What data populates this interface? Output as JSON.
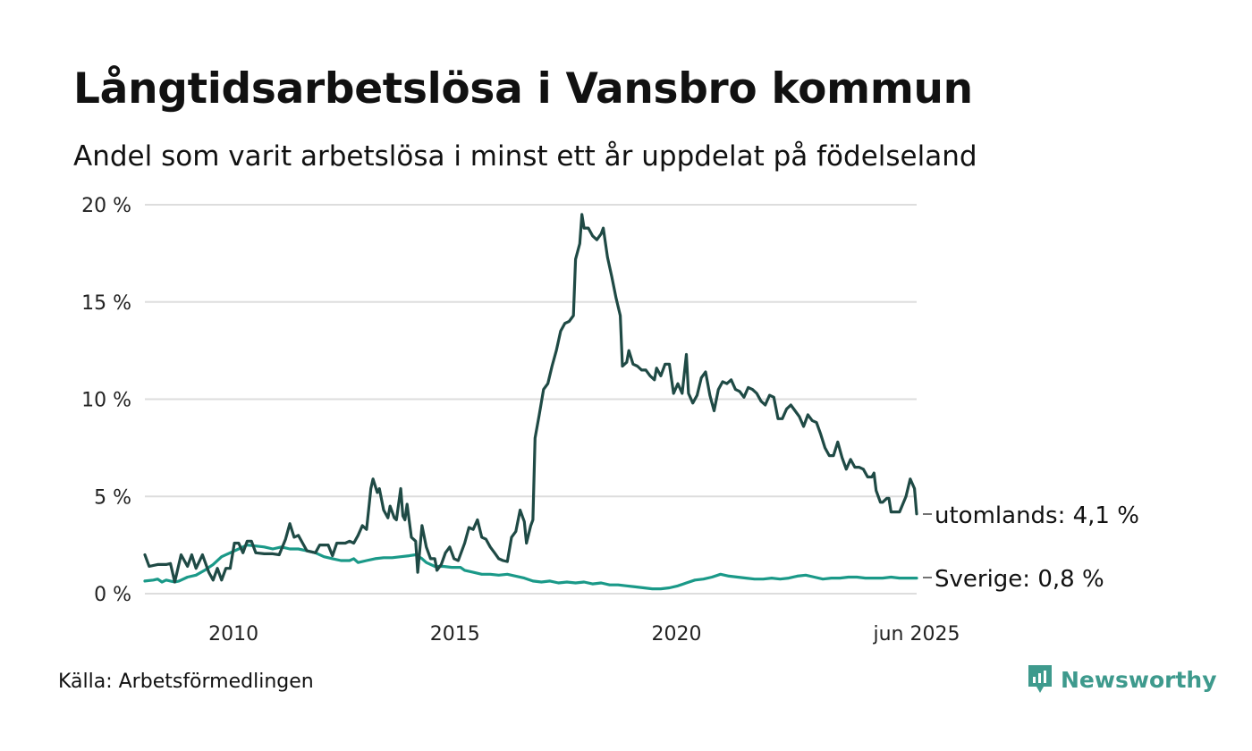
{
  "title": "Långtidsarbetslösa i Vansbro kommun",
  "subtitle": "Andel som varit arbetslösa i minst ett år uppdelat på födelseland",
  "source": "Källa: Arbetsförmedlingen",
  "brand": "Newsworthy",
  "colors": {
    "utomlands": "#1f4a45",
    "sverige": "#1a9988",
    "grid": "#dddddd",
    "brand": "#3e9a8d"
  },
  "chart_data": {
    "type": "line",
    "title": "Långtidsarbetslösa i Vansbro kommun",
    "subtitle": "Andel som varit arbetslösa i minst ett år uppdelat på födelseland",
    "x_range": [
      2008.0,
      2025.42
    ],
    "ylim": [
      0,
      20
    ],
    "y_ticks": [
      0,
      5,
      10,
      15,
      20
    ],
    "y_tick_labels": [
      "0 %",
      "5 %",
      "10 %",
      "15 %",
      "20 %"
    ],
    "x_ticks": [
      2010,
      2015,
      2020,
      2025.42
    ],
    "x_tick_labels": [
      "2010",
      "2015",
      "2020",
      "jun 2025"
    ],
    "grid": "horizontal",
    "legend": "end-of-line labels",
    "series": [
      {
        "name": "utomlands",
        "end_label": "utomlands: 4,1 %",
        "points": [
          [
            2008.0,
            2.0
          ],
          [
            2008.1,
            1.4
          ],
          [
            2008.3,
            1.5
          ],
          [
            2008.5,
            1.5
          ],
          [
            2008.6,
            1.55
          ],
          [
            2008.7,
            0.6
          ],
          [
            2008.85,
            2.0
          ],
          [
            2009.0,
            1.4
          ],
          [
            2009.1,
            2.0
          ],
          [
            2009.2,
            1.3
          ],
          [
            2009.35,
            2.0
          ],
          [
            2009.5,
            1.1
          ],
          [
            2009.6,
            0.7
          ],
          [
            2009.7,
            1.3
          ],
          [
            2009.8,
            0.7
          ],
          [
            2009.9,
            1.3
          ],
          [
            2010.0,
            1.3
          ],
          [
            2010.1,
            2.6
          ],
          [
            2010.2,
            2.6
          ],
          [
            2010.3,
            2.1
          ],
          [
            2010.4,
            2.7
          ],
          [
            2010.5,
            2.7
          ],
          [
            2010.6,
            2.1
          ],
          [
            2010.8,
            2.05
          ],
          [
            2011.0,
            2.05
          ],
          [
            2011.15,
            2.0
          ],
          [
            2011.3,
            2.8
          ],
          [
            2011.4,
            3.6
          ],
          [
            2011.5,
            2.9
          ],
          [
            2011.6,
            3.0
          ],
          [
            2011.7,
            2.6
          ],
          [
            2011.8,
            2.2
          ],
          [
            2012.0,
            2.1
          ],
          [
            2012.1,
            2.5
          ],
          [
            2012.3,
            2.5
          ],
          [
            2012.4,
            1.95
          ],
          [
            2012.5,
            2.6
          ],
          [
            2012.7,
            2.6
          ],
          [
            2012.8,
            2.7
          ],
          [
            2012.9,
            2.6
          ],
          [
            2013.0,
            3.0
          ],
          [
            2013.1,
            3.5
          ],
          [
            2013.2,
            3.3
          ],
          [
            2013.3,
            5.4
          ],
          [
            2013.35,
            5.9
          ],
          [
            2013.45,
            5.2
          ],
          [
            2013.5,
            5.4
          ],
          [
            2013.6,
            4.3
          ],
          [
            2013.7,
            3.9
          ],
          [
            2013.75,
            4.5
          ],
          [
            2013.85,
            3.9
          ],
          [
            2013.9,
            3.8
          ],
          [
            2014.0,
            5.4
          ],
          [
            2014.05,
            4.0
          ],
          [
            2014.1,
            3.8
          ],
          [
            2014.15,
            4.6
          ],
          [
            2014.25,
            2.9
          ],
          [
            2014.35,
            2.7
          ],
          [
            2014.4,
            1.1
          ],
          [
            2014.5,
            3.5
          ],
          [
            2014.6,
            2.4
          ],
          [
            2014.7,
            1.8
          ],
          [
            2014.8,
            1.8
          ],
          [
            2014.85,
            1.2
          ],
          [
            2014.95,
            1.5
          ],
          [
            2015.05,
            2.1
          ],
          [
            2015.15,
            2.4
          ],
          [
            2015.25,
            1.8
          ],
          [
            2015.35,
            1.7
          ],
          [
            2015.5,
            2.6
          ],
          [
            2015.6,
            3.4
          ],
          [
            2015.7,
            3.3
          ],
          [
            2015.8,
            3.8
          ],
          [
            2015.9,
            2.9
          ],
          [
            2016.0,
            2.8
          ],
          [
            2016.1,
            2.4
          ],
          [
            2016.2,
            2.1
          ],
          [
            2016.3,
            1.8
          ],
          [
            2016.4,
            1.7
          ],
          [
            2016.5,
            1.65
          ],
          [
            2016.6,
            2.9
          ],
          [
            2016.7,
            3.2
          ],
          [
            2016.8,
            4.3
          ],
          [
            2016.9,
            3.7
          ],
          [
            2016.95,
            2.6
          ],
          [
            2017.05,
            3.5
          ],
          [
            2017.1,
            3.8
          ],
          [
            2017.15,
            8.0
          ],
          [
            2017.25,
            9.2
          ],
          [
            2017.35,
            10.5
          ],
          [
            2017.45,
            10.8
          ],
          [
            2017.55,
            11.7
          ],
          [
            2017.65,
            12.5
          ],
          [
            2017.75,
            13.5
          ],
          [
            2017.85,
            13.9
          ],
          [
            2017.95,
            14.0
          ],
          [
            2018.05,
            14.3
          ],
          [
            2018.1,
            17.2
          ],
          [
            2018.2,
            18.0
          ],
          [
            2018.25,
            19.5
          ],
          [
            2018.3,
            18.8
          ],
          [
            2018.4,
            18.8
          ],
          [
            2018.5,
            18.4
          ],
          [
            2018.6,
            18.2
          ],
          [
            2018.7,
            18.5
          ],
          [
            2018.75,
            18.8
          ],
          [
            2018.85,
            17.3
          ],
          [
            2018.95,
            16.3
          ],
          [
            2019.05,
            15.2
          ],
          [
            2019.15,
            14.3
          ],
          [
            2019.2,
            11.7
          ],
          [
            2019.3,
            11.9
          ],
          [
            2019.35,
            12.5
          ],
          [
            2019.45,
            11.8
          ],
          [
            2019.55,
            11.7
          ],
          [
            2019.65,
            11.5
          ],
          [
            2019.75,
            11.5
          ],
          [
            2019.85,
            11.2
          ],
          [
            2019.95,
            11.0
          ],
          [
            2020.0,
            11.6
          ],
          [
            2020.1,
            11.2
          ],
          [
            2020.2,
            11.8
          ],
          [
            2020.3,
            11.8
          ],
          [
            2020.4,
            10.3
          ],
          [
            2020.5,
            10.8
          ],
          [
            2020.6,
            10.3
          ],
          [
            2020.7,
            12.3
          ],
          [
            2020.75,
            10.3
          ],
          [
            2020.85,
            9.8
          ],
          [
            2020.95,
            10.2
          ],
          [
            2021.05,
            11.1
          ],
          [
            2021.15,
            11.4
          ],
          [
            2021.25,
            10.2
          ],
          [
            2021.35,
            9.4
          ],
          [
            2021.45,
            10.5
          ],
          [
            2021.55,
            10.9
          ],
          [
            2021.65,
            10.8
          ],
          [
            2021.75,
            11.0
          ],
          [
            2021.85,
            10.5
          ],
          [
            2021.95,
            10.4
          ],
          [
            2022.05,
            10.1
          ],
          [
            2022.15,
            10.6
          ],
          [
            2022.25,
            10.5
          ],
          [
            2022.35,
            10.3
          ],
          [
            2022.45,
            9.9
          ],
          [
            2022.55,
            9.7
          ],
          [
            2022.65,
            10.2
          ],
          [
            2022.75,
            10.1
          ],
          [
            2022.85,
            9.0
          ],
          [
            2022.95,
            9.0
          ],
          [
            2023.05,
            9.5
          ],
          [
            2023.15,
            9.7
          ],
          [
            2023.25,
            9.4
          ],
          [
            2023.35,
            9.1
          ],
          [
            2023.45,
            8.6
          ],
          [
            2023.55,
            9.2
          ],
          [
            2023.65,
            8.9
          ],
          [
            2023.75,
            8.8
          ],
          [
            2023.85,
            8.2
          ],
          [
            2023.95,
            7.5
          ],
          [
            2024.05,
            7.1
          ],
          [
            2024.15,
            7.1
          ],
          [
            2024.25,
            7.8
          ],
          [
            2024.35,
            7.0
          ],
          [
            2024.45,
            6.4
          ],
          [
            2024.55,
            6.9
          ],
          [
            2024.65,
            6.5
          ],
          [
            2024.75,
            6.5
          ],
          [
            2024.85,
            6.4
          ],
          [
            2024.95,
            6.0
          ],
          [
            2025.05,
            6.0
          ],
          [
            2025.1,
            6.2
          ],
          [
            2025.15,
            5.3
          ],
          [
            2025.25,
            4.7
          ],
          [
            2025.3,
            4.7
          ],
          [
            2025.4,
            4.9
          ],
          [
            2025.45,
            4.9
          ],
          [
            2025.5,
            4.2
          ],
          [
            2025.6,
            4.2
          ],
          [
            2025.7,
            4.2
          ],
          [
            2025.85,
            5.0
          ],
          [
            2025.95,
            5.9
          ],
          [
            2026.05,
            5.4
          ],
          [
            2026.1,
            4.1
          ]
        ]
      },
      {
        "name": "Sverige",
        "end_label": "Sverige: 0,8 %",
        "points": [
          [
            2008.0,
            0.65
          ],
          [
            2008.2,
            0.7
          ],
          [
            2008.3,
            0.75
          ],
          [
            2008.4,
            0.6
          ],
          [
            2008.5,
            0.7
          ],
          [
            2008.6,
            0.65
          ],
          [
            2008.7,
            0.6
          ],
          [
            2008.8,
            0.65
          ],
          [
            2009.0,
            0.85
          ],
          [
            2009.2,
            0.95
          ],
          [
            2009.4,
            1.2
          ],
          [
            2009.6,
            1.5
          ],
          [
            2009.8,
            1.9
          ],
          [
            2010.0,
            2.1
          ],
          [
            2010.2,
            2.3
          ],
          [
            2010.4,
            2.5
          ],
          [
            2010.6,
            2.45
          ],
          [
            2010.8,
            2.4
          ],
          [
            2011.0,
            2.3
          ],
          [
            2011.2,
            2.4
          ],
          [
            2011.4,
            2.3
          ],
          [
            2011.6,
            2.3
          ],
          [
            2011.8,
            2.2
          ],
          [
            2012.0,
            2.1
          ],
          [
            2012.2,
            1.9
          ],
          [
            2012.4,
            1.8
          ],
          [
            2012.6,
            1.7
          ],
          [
            2012.8,
            1.7
          ],
          [
            2012.9,
            1.8
          ],
          [
            2013.0,
            1.6
          ],
          [
            2013.2,
            1.7
          ],
          [
            2013.4,
            1.8
          ],
          [
            2013.6,
            1.85
          ],
          [
            2013.8,
            1.85
          ],
          [
            2014.0,
            1.9
          ],
          [
            2014.2,
            1.95
          ],
          [
            2014.35,
            2.0
          ],
          [
            2014.5,
            1.8
          ],
          [
            2014.6,
            1.6
          ],
          [
            2014.8,
            1.4
          ],
          [
            2015.0,
            1.4
          ],
          [
            2015.2,
            1.35
          ],
          [
            2015.4,
            1.35
          ],
          [
            2015.5,
            1.2
          ],
          [
            2015.7,
            1.1
          ],
          [
            2015.9,
            1.0
          ],
          [
            2016.1,
            1.0
          ],
          [
            2016.3,
            0.95
          ],
          [
            2016.5,
            1.0
          ],
          [
            2016.7,
            0.9
          ],
          [
            2016.9,
            0.8
          ],
          [
            2017.1,
            0.65
          ],
          [
            2017.3,
            0.6
          ],
          [
            2017.5,
            0.65
          ],
          [
            2017.7,
            0.55
          ],
          [
            2017.9,
            0.6
          ],
          [
            2018.1,
            0.55
          ],
          [
            2018.3,
            0.6
          ],
          [
            2018.5,
            0.5
          ],
          [
            2018.7,
            0.55
          ],
          [
            2018.9,
            0.45
          ],
          [
            2019.1,
            0.45
          ],
          [
            2019.3,
            0.4
          ],
          [
            2019.5,
            0.35
          ],
          [
            2019.7,
            0.3
          ],
          [
            2019.9,
            0.25
          ],
          [
            2020.1,
            0.25
          ],
          [
            2020.3,
            0.3
          ],
          [
            2020.5,
            0.4
          ],
          [
            2020.7,
            0.55
          ],
          [
            2020.9,
            0.7
          ],
          [
            2021.1,
            0.75
          ],
          [
            2021.3,
            0.85
          ],
          [
            2021.5,
            1.0
          ],
          [
            2021.7,
            0.9
          ],
          [
            2021.9,
            0.85
          ],
          [
            2022.1,
            0.8
          ],
          [
            2022.3,
            0.75
          ],
          [
            2022.5,
            0.75
          ],
          [
            2022.7,
            0.8
          ],
          [
            2022.9,
            0.75
          ],
          [
            2023.1,
            0.8
          ],
          [
            2023.3,
            0.9
          ],
          [
            2023.5,
            0.95
          ],
          [
            2023.7,
            0.85
          ],
          [
            2023.9,
            0.75
          ],
          [
            2024.1,
            0.8
          ],
          [
            2024.3,
            0.8
          ],
          [
            2024.5,
            0.85
          ],
          [
            2024.7,
            0.85
          ],
          [
            2024.9,
            0.8
          ],
          [
            2025.1,
            0.8
          ],
          [
            2025.3,
            0.8
          ],
          [
            2025.5,
            0.85
          ],
          [
            2025.7,
            0.8
          ],
          [
            2025.9,
            0.8
          ],
          [
            2026.1,
            0.8
          ]
        ]
      }
    ]
  }
}
